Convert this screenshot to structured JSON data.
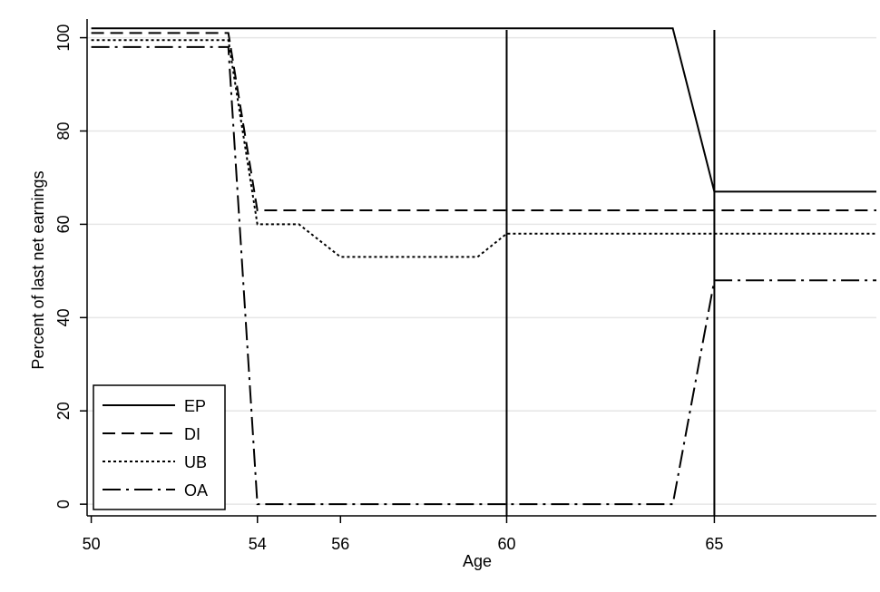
{
  "chart_data": {
    "type": "line",
    "title": "",
    "xlabel": "Age",
    "ylabel": "Percent of last net earnings",
    "xlim": [
      49.9,
      68.9
    ],
    "ylim": [
      -2.5,
      104
    ],
    "x_ticks": [
      50,
      54,
      56,
      60,
      65
    ],
    "x_tick_labels": [
      "50",
      "54",
      "56",
      "60",
      "65"
    ],
    "y_ticks": [
      0,
      20,
      40,
      60,
      80,
      100
    ],
    "y_tick_labels": [
      "0",
      "20",
      "40",
      "60",
      "80",
      "100"
    ],
    "grid": "horizontal",
    "vertical_reference_lines": [
      60,
      65
    ],
    "legend_position": "bottom-left",
    "series": [
      {
        "name": "EP",
        "style": "solid",
        "x": [
          50,
          64,
          65,
          68.9
        ],
        "y": [
          102,
          102,
          67,
          67
        ]
      },
      {
        "name": "DI",
        "style": "dashed",
        "x": [
          50,
          53.3,
          54,
          68.9
        ],
        "y": [
          101,
          101,
          63,
          63
        ]
      },
      {
        "name": "UB",
        "style": "dotted",
        "x": [
          50,
          53.3,
          54,
          55,
          56,
          59.3,
          60,
          68.9
        ],
        "y": [
          99.5,
          99.5,
          60,
          60,
          53,
          53,
          58,
          58
        ]
      },
      {
        "name": "OA",
        "style": "dashdot",
        "x": [
          50,
          53.3,
          54,
          64,
          65,
          68.9
        ],
        "y": [
          98,
          98,
          0,
          0,
          48,
          48
        ]
      }
    ]
  }
}
